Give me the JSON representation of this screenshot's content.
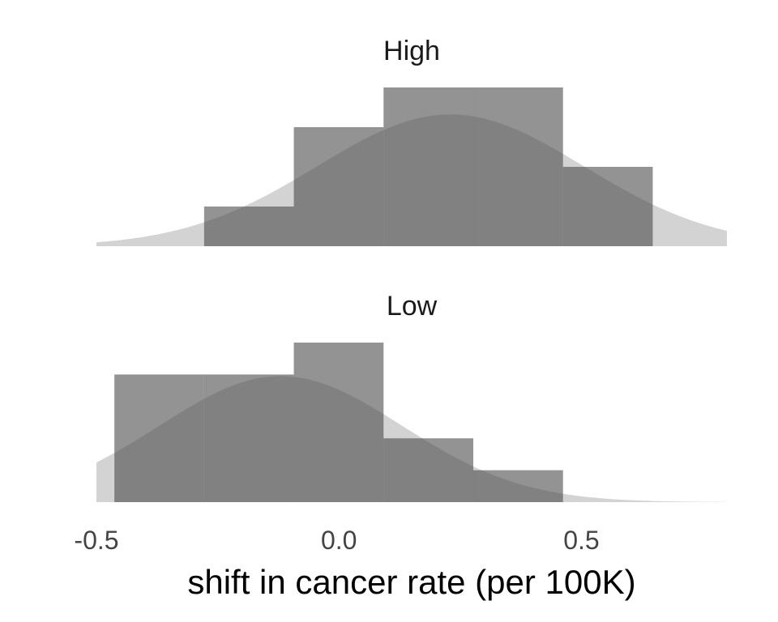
{
  "chart_data": {
    "type": "histogram-density",
    "xlabel": "shift in cancer rate (per 100K)",
    "xlim": [
      -0.5,
      0.8
    ],
    "x_ticks": [
      {
        "value": -0.5,
        "label": "-0.5"
      },
      {
        "value": 0.0,
        "label": "0.0"
      },
      {
        "value": 0.5,
        "label": "0.5"
      }
    ],
    "bin_width": 0.185,
    "colors": {
      "bars": "#7f7f7f",
      "density": "#d3d3d3",
      "background": "#ffffff"
    },
    "panels": [
      {
        "title": "High",
        "bins": [
          {
            "start": -0.278,
            "end": -0.093,
            "count": 1
          },
          {
            "start": -0.093,
            "end": 0.092,
            "count": 3
          },
          {
            "start": 0.092,
            "end": 0.277,
            "count": 4
          },
          {
            "start": 0.277,
            "end": 0.462,
            "count": 4
          },
          {
            "start": 0.462,
            "end": 0.647,
            "count": 2
          }
        ],
        "density": {
          "mean": 0.23,
          "sd": 0.275,
          "peak_relative": 0.83
        }
      },
      {
        "title": "Low",
        "bins": [
          {
            "start": -0.463,
            "end": -0.278,
            "count": 4
          },
          {
            "start": -0.278,
            "end": -0.093,
            "count": 4
          },
          {
            "start": -0.093,
            "end": 0.092,
            "count": 5
          },
          {
            "start": 0.092,
            "end": 0.277,
            "count": 2
          },
          {
            "start": 0.277,
            "end": 0.462,
            "count": 1
          }
        ],
        "density": {
          "mean": -0.12,
          "sd": 0.25,
          "peak_relative": 0.79
        }
      }
    ]
  }
}
